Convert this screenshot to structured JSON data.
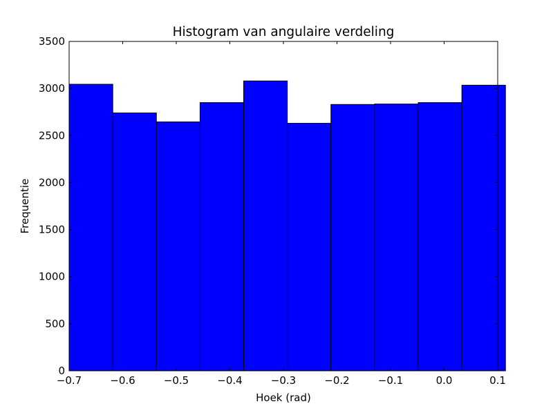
{
  "chart_data": {
    "type": "bar",
    "title": "Histogram van angulaire verdeling",
    "xlabel": "Hoek (rad)",
    "ylabel": "Frequentie",
    "bin_edges": [
      -0.7,
      -0.6185,
      -0.5371,
      -0.4556,
      -0.3742,
      -0.2927,
      -0.2113,
      -0.1298,
      -0.0484,
      0.0331,
      0.1145
    ],
    "values": [
      3045,
      2740,
      2645,
      2850,
      3080,
      2630,
      2830,
      2835,
      2850,
      3035
    ],
    "xlim": [
      -0.7,
      0.1
    ],
    "ylim": [
      0,
      3500
    ],
    "xticks": [
      -0.7,
      -0.6,
      -0.5,
      -0.4,
      -0.3,
      -0.2,
      -0.1,
      0.0,
      0.1
    ],
    "xtick_labels": [
      "−0.7",
      "−0.6",
      "−0.5",
      "−0.4",
      "−0.3",
      "−0.2",
      "−0.1",
      "0.0",
      "0.1"
    ],
    "yticks": [
      0,
      500,
      1000,
      1500,
      2000,
      2500,
      3000,
      3500
    ],
    "ytick_labels": [
      "0",
      "500",
      "1000",
      "1500",
      "2000",
      "2500",
      "3000",
      "3500"
    ],
    "bar_color": "#0000ff",
    "edge_color": "#000000",
    "grid": false,
    "legend": "none"
  }
}
